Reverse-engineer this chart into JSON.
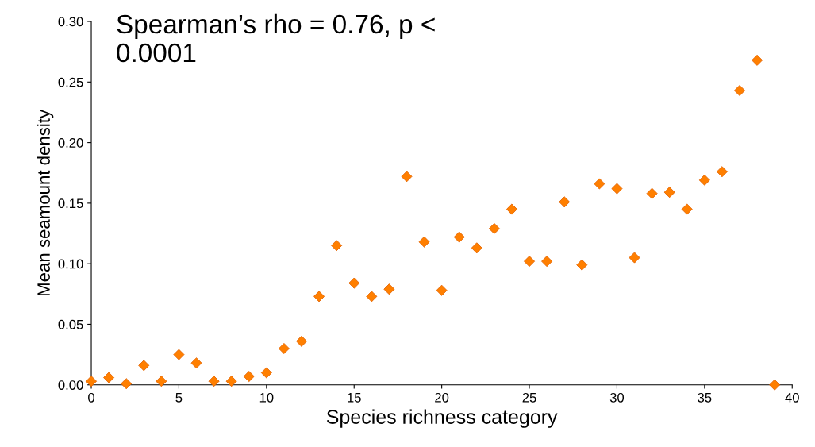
{
  "chart_data": {
    "type": "scatter",
    "xlabel": "Species richness category",
    "ylabel": "Mean seamount density",
    "annotations": [
      "Spearman’s rho = 0.76, p <\n0.0001"
    ],
    "x": [
      0,
      1,
      2,
      3,
      4,
      5,
      6,
      7,
      8,
      9,
      10,
      11,
      12,
      13,
      14,
      15,
      16,
      17,
      18,
      19,
      20,
      21,
      22,
      23,
      24,
      25,
      26,
      27,
      28,
      29,
      30,
      31,
      32,
      33,
      34,
      35,
      36,
      37,
      38,
      39
    ],
    "values": [
      0.003,
      0.006,
      0.001,
      0.016,
      0.003,
      0.025,
      0.018,
      0.003,
      0.003,
      0.007,
      0.01,
      0.03,
      0.036,
      0.073,
      0.115,
      0.084,
      0.073,
      0.079,
      0.172,
      0.118,
      0.078,
      0.122,
      0.113,
      0.129,
      0.145,
      0.102,
      0.102,
      0.151,
      0.099,
      0.166,
      0.162,
      0.105,
      0.158,
      0.159,
      0.145,
      0.169,
      0.176,
      0.243,
      0.268,
      0.0
    ],
    "color": "#ff7f00",
    "marker": "diamond",
    "xlim": [
      0,
      40
    ],
    "xticks": [
      0,
      5,
      10,
      15,
      20,
      25,
      30,
      35,
      40
    ],
    "ylim": [
      0,
      0.3
    ],
    "yticks": [
      {
        "value": 0,
        "label": "0.00"
      },
      {
        "value": 0.05,
        "label": "0.05"
      },
      {
        "value": 0.1,
        "label": "0.10"
      },
      {
        "value": 0.15,
        "label": "0.15"
      },
      {
        "value": 0.2,
        "label": "0.20"
      },
      {
        "value": 0.25,
        "label": "0.25"
      },
      {
        "value": 0.3,
        "label": "0.30"
      }
    ],
    "grid": false,
    "legend": false
  }
}
